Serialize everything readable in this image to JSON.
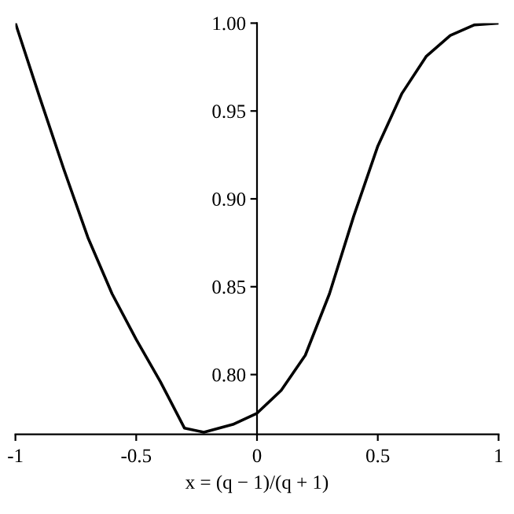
{
  "chart_data": {
    "type": "line",
    "xlabel": "x = (q − 1)/(q + 1)",
    "x": [
      -1,
      -0.9,
      -0.8,
      -0.7,
      -0.6,
      -0.5,
      -0.4,
      -0.3,
      -0.22,
      -0.1,
      0,
      0.1,
      0.2,
      0.3,
      0.4,
      0.5,
      0.6,
      0.7,
      0.8,
      0.9,
      1
    ],
    "series": [
      {
        "color": "#000000",
        "values": [
          1.0,
          0.958,
          0.917,
          0.878,
          0.846,
          0.82,
          0.796,
          0.7695,
          0.7672,
          0.7716,
          0.778,
          0.791,
          0.811,
          0.846,
          0.89,
          0.93,
          0.96,
          0.981,
          0.993,
          0.999,
          1.0
        ]
      }
    ],
    "xlim": [
      -1,
      1
    ],
    "ylim": [
      0.766,
      1.0
    ],
    "xticks": [
      {
        "value": -1,
        "label": "-1"
      },
      {
        "value": -0.5,
        "label": "-0.5"
      },
      0,
      0.5,
      1
    ],
    "yticks": [
      {
        "value": 0.8,
        "label": "0.80"
      },
      {
        "value": 0.85,
        "label": "0.85"
      },
      {
        "value": 0.9,
        "label": "0.90"
      },
      {
        "value": 0.95,
        "label": "0.95"
      },
      {
        "value": 1.0,
        "label": "1.00"
      }
    ],
    "grid": false,
    "legend": false,
    "line_style": "solid"
  }
}
